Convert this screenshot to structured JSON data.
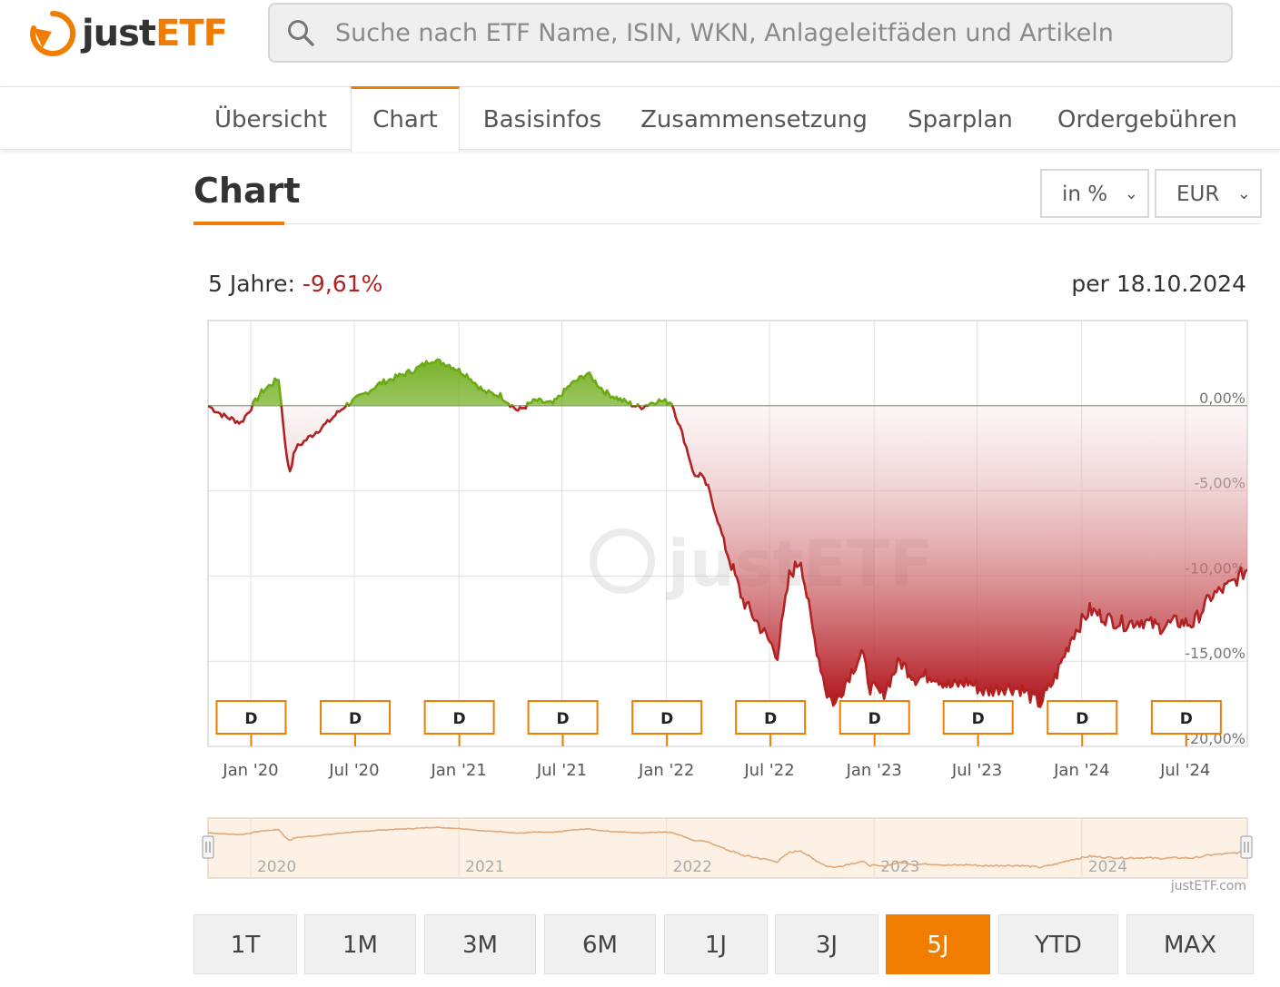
{
  "brand": {
    "name_part1": "just",
    "name_part2": "ETF",
    "footer": "justETF.com",
    "watermark": "justETF"
  },
  "search": {
    "placeholder": "Suche nach ETF Name, ISIN, WKN, Anlageleitfäden und Artikeln",
    "value": ""
  },
  "tabs": [
    {
      "label": "Übersicht",
      "active": false
    },
    {
      "label": "Chart",
      "active": true
    },
    {
      "label": "Basisinfos",
      "active": false
    },
    {
      "label": "Zusammensetzung",
      "active": false
    },
    {
      "label": "Sparplan",
      "active": false
    },
    {
      "label": "Ordergebühren",
      "active": false
    }
  ],
  "section": {
    "title": "Chart"
  },
  "controls": {
    "mode_value": "in %",
    "currency_value": "EUR"
  },
  "performance": {
    "label": "5 Jahre:",
    "value": "-9,61%",
    "as_of": "per 18.10.2024"
  },
  "range_buttons": [
    {
      "label": "1T",
      "active": false
    },
    {
      "label": "1M",
      "active": false
    },
    {
      "label": "3M",
      "active": false
    },
    {
      "label": "6M",
      "active": false
    },
    {
      "label": "1J",
      "active": false
    },
    {
      "label": "3J",
      "active": false
    },
    {
      "label": "5J",
      "active": true
    },
    {
      "label": "YTD",
      "active": false
    },
    {
      "label": "MAX",
      "active": false
    }
  ],
  "colors": {
    "accent": "#f07d00",
    "negative": "#b22222",
    "positive": "#6aaa12",
    "grid": "#e0e0e0"
  },
  "chart_data": {
    "type": "area",
    "y_unit": "%",
    "ylim": [
      -20,
      5
    ],
    "y_ticks": [
      0,
      -5,
      -10,
      -15,
      -20
    ],
    "y_tick_labels": [
      "0,00%",
      "-5,00%",
      "-10,00%",
      "-15,00%",
      "-20,00%"
    ],
    "x_tick_labels": [
      "Jan '20",
      "Jul '20",
      "Jan '21",
      "Jul '21",
      "Jan '22",
      "Jul '22",
      "Jan '23",
      "Jul '23",
      "Jan '24",
      "Jul '24"
    ],
    "x_tick_dates": [
      "2020-01-01",
      "2020-07-01",
      "2021-01-01",
      "2021-07-01",
      "2022-01-01",
      "2022-07-01",
      "2023-01-01",
      "2023-07-01",
      "2024-01-01",
      "2024-07-01"
    ],
    "grid": true,
    "x": [
      "2019-10-18",
      "2019-11-15",
      "2019-12-15",
      "2020-01-20",
      "2020-02-19",
      "2020-03-05",
      "2020-03-10",
      "2020-03-20",
      "2020-04-15",
      "2020-05-15",
      "2020-06-15",
      "2020-07-15",
      "2020-08-15",
      "2020-09-15",
      "2020-10-15",
      "2020-11-15",
      "2020-12-15",
      "2021-01-15",
      "2021-02-15",
      "2021-03-15",
      "2021-04-15",
      "2021-05-15",
      "2021-06-15",
      "2021-07-15",
      "2021-08-15",
      "2021-09-15",
      "2021-10-15",
      "2021-11-15",
      "2021-12-15",
      "2022-01-10",
      "2022-02-01",
      "2022-02-20",
      "2022-03-01",
      "2022-03-15",
      "2022-04-15",
      "2022-05-15",
      "2022-06-15",
      "2022-07-15",
      "2022-08-05",
      "2022-08-25",
      "2022-09-15",
      "2022-10-10",
      "2022-10-25",
      "2022-11-15",
      "2022-12-10",
      "2022-12-25",
      "2023-01-15",
      "2023-02-15",
      "2023-03-15",
      "2023-04-15",
      "2023-05-15",
      "2023-06-15",
      "2023-07-15",
      "2023-08-15",
      "2023-09-15",
      "2023-10-20",
      "2023-11-15",
      "2023-12-15",
      "2024-01-15",
      "2024-02-15",
      "2024-03-15",
      "2024-04-15",
      "2024-05-15",
      "2024-06-15",
      "2024-07-15",
      "2024-08-15",
      "2024-09-15",
      "2024-10-18"
    ],
    "values": [
      0,
      -0.6,
      -1.0,
      0.8,
      1.6,
      -3.2,
      -3.8,
      -2.5,
      -1.8,
      -1.0,
      0,
      0.6,
      1.3,
      1.7,
      2.1,
      2.7,
      2.4,
      1.8,
      0.8,
      0.6,
      -0.3,
      0.3,
      0.1,
      1.2,
      1.9,
      0.8,
      0.3,
      -0.1,
      0.3,
      0.2,
      -2.0,
      -4.2,
      -4.0,
      -4.8,
      -8.3,
      -11.4,
      -13.0,
      -14.6,
      -10.0,
      -9.0,
      -13.2,
      -16.9,
      -17.5,
      -16.0,
      -14.5,
      -16.5,
      -17.0,
      -15.0,
      -16.0,
      -15.8,
      -16.5,
      -16.2,
      -16.8,
      -16.5,
      -16.6,
      -17.5,
      -16.0,
      -13.5,
      -12.0,
      -12.5,
      -12.8,
      -12.6,
      -13.0,
      -12.7,
      -12.8,
      -11.2,
      -10.6,
      -9.61
    ],
    "dividend_markers": {
      "label": "D",
      "dates": [
        "2019-12-20",
        "2020-06-20",
        "2020-12-20",
        "2021-06-20",
        "2021-12-20",
        "2022-06-20",
        "2022-12-20",
        "2023-06-20",
        "2023-12-20",
        "2024-06-20"
      ]
    },
    "navigator": {
      "year_labels": [
        "2020",
        "2021",
        "2022",
        "2023",
        "2024"
      ],
      "year_dates": [
        "2020-01-01",
        "2021-01-01",
        "2022-01-01",
        "2023-01-01",
        "2024-01-01"
      ]
    }
  }
}
